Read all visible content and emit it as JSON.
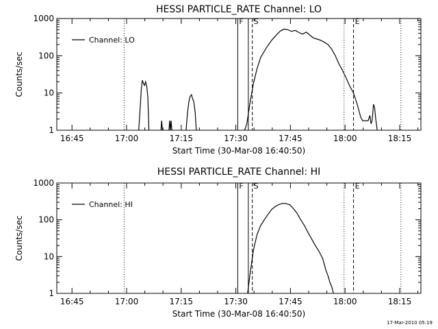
{
  "footer": {
    "timestamp": "17-Mar-2010 05:19"
  },
  "chart_data": [
    {
      "type": "line",
      "title": "HESSI PARTICLE_RATE Channel: LO",
      "xlabel": "Start Time (30-Mar-08 16:40:50)",
      "ylabel": "Counts/sec",
      "x_unit": "minutes after 16:40:50",
      "xlim": [
        0,
        100
      ],
      "ylim": [
        1,
        1000
      ],
      "yscale": "log",
      "xticks": [
        {
          "x": 4.17,
          "label": "16:45"
        },
        {
          "x": 19.17,
          "label": "17:00"
        },
        {
          "x": 34.17,
          "label": "17:15"
        },
        {
          "x": 49.17,
          "label": "17:30"
        },
        {
          "x": 64.17,
          "label": "17:45"
        },
        {
          "x": 79.17,
          "label": "18:00"
        },
        {
          "x": 94.17,
          "label": "18:15"
        }
      ],
      "yticks": [
        {
          "y": 1,
          "label": "1"
        },
        {
          "y": 10,
          "label": "10"
        },
        {
          "y": 100,
          "label": "100"
        },
        {
          "y": 1000,
          "label": "1000"
        }
      ],
      "legend": {
        "placement": "top-left",
        "label": "Channel: LO"
      },
      "markers": [
        {
          "x": 18.5,
          "style": "dotted",
          "label": ""
        },
        {
          "x": 49.7,
          "style": "solid",
          "label": "F"
        },
        {
          "x": 52.6,
          "style": "solid",
          "label": ""
        },
        {
          "x": 53.7,
          "style": "dashed",
          "label": "S"
        },
        {
          "x": 78.9,
          "style": "dotted",
          "label": ""
        },
        {
          "x": 81.5,
          "style": "dashed",
          "label": "E"
        },
        {
          "x": 94.5,
          "style": "dotted",
          "label": ""
        }
      ],
      "series": [
        {
          "segments": [
            [
              [
                22.5,
                1
              ],
              [
                22.9,
                4
              ],
              [
                23.2,
                12
              ],
              [
                23.5,
                22
              ],
              [
                23.8,
                18
              ],
              [
                24.1,
                16
              ],
              [
                24.4,
                20
              ],
              [
                24.7,
                15
              ],
              [
                25.0,
                8
              ],
              [
                25.3,
                1
              ]
            ],
            [
              [
                28.6,
                1
              ],
              [
                28.8,
                1.8
              ],
              [
                29.0,
                1
              ]
            ],
            [
              [
                30.8,
                1
              ],
              [
                31.0,
                1.8
              ],
              [
                31.2,
                1
              ],
              [
                31.4,
                1.8
              ],
              [
                31.6,
                1
              ]
            ],
            [
              [
                35.5,
                1
              ],
              [
                35.9,
                3
              ],
              [
                36.3,
                6
              ],
              [
                36.6,
                8
              ],
              [
                37.0,
                9
              ],
              [
                37.3,
                7
              ],
              [
                37.6,
                6
              ],
              [
                38.0,
                3
              ],
              [
                38.3,
                1
              ]
            ],
            [
              [
                51.6,
                1
              ],
              [
                52.2,
                1.5
              ],
              [
                53.0,
                5
              ],
              [
                54.0,
                18
              ],
              [
                55.0,
                45
              ],
              [
                56.0,
                90
              ],
              [
                57.5,
                160
              ],
              [
                59.0,
                260
              ],
              [
                60.5,
                380
              ],
              [
                61.5,
                470
              ],
              [
                62.5,
                520
              ],
              [
                63.5,
                500
              ],
              [
                64.5,
                450
              ],
              [
                65.5,
                480
              ],
              [
                66.5,
                420
              ],
              [
                67.5,
                380
              ],
              [
                68.5,
                430
              ],
              [
                69.5,
                360
              ],
              [
                70.5,
                300
              ],
              [
                71.5,
                280
              ],
              [
                72.5,
                260
              ],
              [
                73.5,
                230
              ],
              [
                74.5,
                200
              ],
              [
                75.5,
                150
              ],
              [
                76.5,
                100
              ],
              [
                77.5,
                60
              ],
              [
                78.5,
                40
              ],
              [
                79.5,
                25
              ],
              [
                80.5,
                15
              ],
              [
                81.5,
                10
              ],
              [
                82.5,
                5
              ],
              [
                83.5,
                2.2
              ],
              [
                84.0,
                1.8
              ],
              [
                85.5,
                1.8
              ],
              [
                86.0,
                2.5
              ],
              [
                86.3,
                1.5
              ],
              [
                86.6,
                1.8
              ],
              [
                87.0,
                5
              ],
              [
                87.3,
                4
              ],
              [
                87.6,
                2
              ],
              [
                88.0,
                1
              ]
            ]
          ]
        }
      ]
    },
    {
      "type": "line",
      "title": "HESSI PARTICLE_RATE Channel: HI",
      "xlabel": "Start Time (30-Mar-08 16:40:50)",
      "ylabel": "Counts/sec",
      "x_unit": "minutes after 16:40:50",
      "xlim": [
        0,
        100
      ],
      "ylim": [
        1,
        1000
      ],
      "yscale": "log",
      "xticks": [
        {
          "x": 4.17,
          "label": "16:45"
        },
        {
          "x": 19.17,
          "label": "17:00"
        },
        {
          "x": 34.17,
          "label": "17:15"
        },
        {
          "x": 49.17,
          "label": "17:30"
        },
        {
          "x": 64.17,
          "label": "17:45"
        },
        {
          "x": 79.17,
          "label": "18:00"
        },
        {
          "x": 94.17,
          "label": "18:15"
        }
      ],
      "yticks": [
        {
          "y": 1,
          "label": "1"
        },
        {
          "y": 10,
          "label": "10"
        },
        {
          "y": 100,
          "label": "100"
        },
        {
          "y": 1000,
          "label": "1000"
        }
      ],
      "legend": {
        "placement": "top-left",
        "label": "Channel: HI"
      },
      "markers": [
        {
          "x": 18.5,
          "style": "dotted",
          "label": ""
        },
        {
          "x": 49.7,
          "style": "solid",
          "label": "F"
        },
        {
          "x": 52.6,
          "style": "solid",
          "label": ""
        },
        {
          "x": 53.7,
          "style": "dashed",
          "label": "S"
        },
        {
          "x": 78.9,
          "style": "dotted",
          "label": ""
        },
        {
          "x": 81.5,
          "style": "dashed",
          "label": "E"
        },
        {
          "x": 94.5,
          "style": "dotted",
          "label": ""
        }
      ],
      "series": [
        {
          "segments": [
            [
              [
                52.4,
                1
              ],
              [
                53.0,
                3
              ],
              [
                54.0,
                15
              ],
              [
                55.0,
                40
              ],
              [
                56.0,
                70
              ],
              [
                57.0,
                100
              ],
              [
                58.0,
                140
              ],
              [
                59.0,
                190
              ],
              [
                60.0,
                230
              ],
              [
                61.0,
                260
              ],
              [
                62.0,
                280
              ],
              [
                63.0,
                275
              ],
              [
                64.0,
                255
              ],
              [
                65.0,
                200
              ],
              [
                66.0,
                150
              ],
              [
                67.0,
                100
              ],
              [
                68.0,
                70
              ],
              [
                69.0,
                45
              ],
              [
                70.0,
                30
              ],
              [
                71.0,
                20
              ],
              [
                72.0,
                14
              ],
              [
                73.0,
                9
              ],
              [
                73.5,
                6
              ],
              [
                74.0,
                4
              ],
              [
                74.5,
                3
              ],
              [
                75.0,
                2
              ],
              [
                75.5,
                1.5
              ],
              [
                76.0,
                1
              ]
            ]
          ]
        }
      ]
    }
  ]
}
